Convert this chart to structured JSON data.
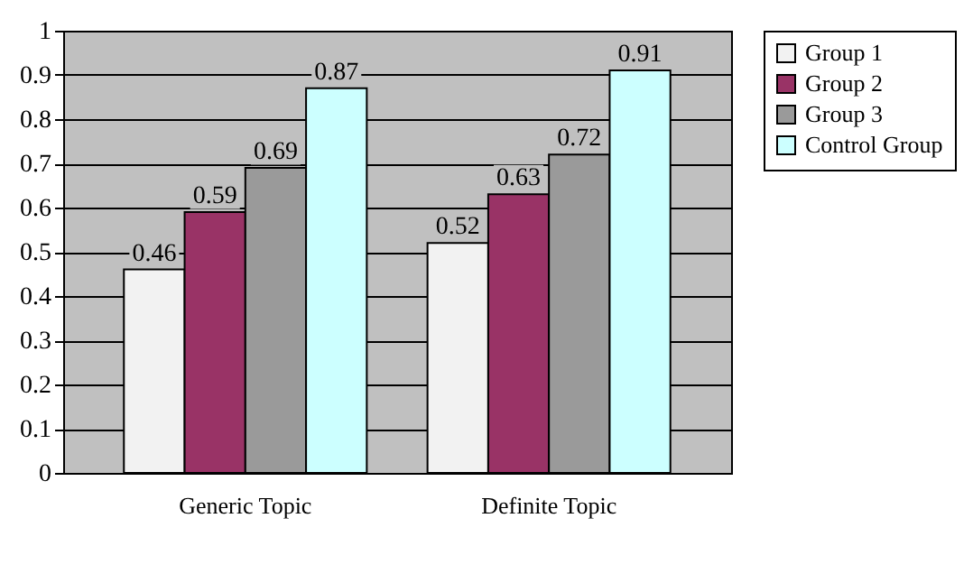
{
  "chart_data": {
    "type": "bar",
    "categories": [
      "Generic Topic",
      "Definite Topic"
    ],
    "series": [
      {
        "name": "Group 1",
        "color": "#f2f2f2",
        "values": [
          0.46,
          0.52
        ]
      },
      {
        "name": "Group 2",
        "color": "#993366",
        "values": [
          0.59,
          0.63
        ]
      },
      {
        "name": "Group 3",
        "color": "#9a9a9a",
        "values": [
          0.69,
          0.72
        ]
      },
      {
        "name": "Control Group",
        "color": "#ccffff",
        "values": [
          0.87,
          0.91
        ]
      }
    ],
    "ylim": [
      0,
      1
    ],
    "yticks": [
      0,
      0.1,
      0.2,
      0.3,
      0.4,
      0.5,
      0.6,
      0.7,
      0.8,
      0.9,
      1
    ],
    "grid": "y",
    "legend": "right",
    "data_labels": true
  }
}
